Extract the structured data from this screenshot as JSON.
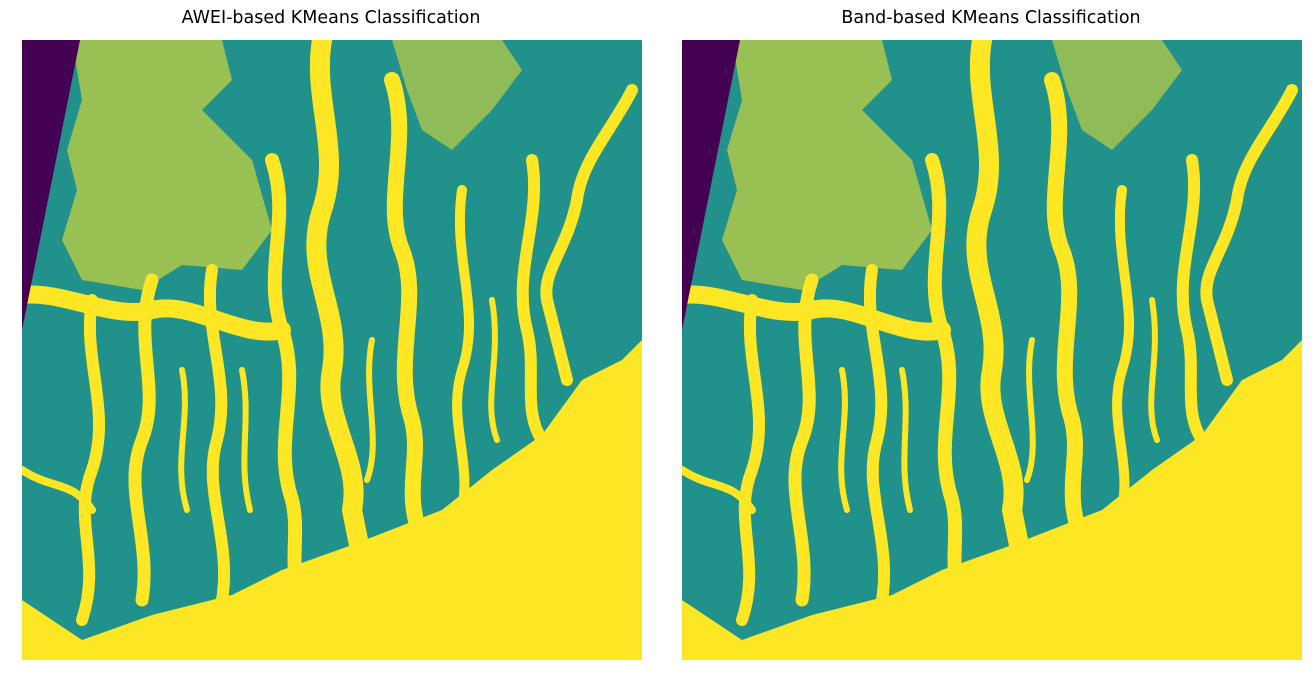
{
  "figure": {
    "panels": [
      {
        "id": "awei",
        "title": "AWEI-based KMeans Classification"
      },
      {
        "id": "band",
        "title": "Band-based KMeans Classification"
      }
    ]
  },
  "colors": {
    "nodata": "#440154",
    "land": "#21918c",
    "water": "#fde725"
  }
}
